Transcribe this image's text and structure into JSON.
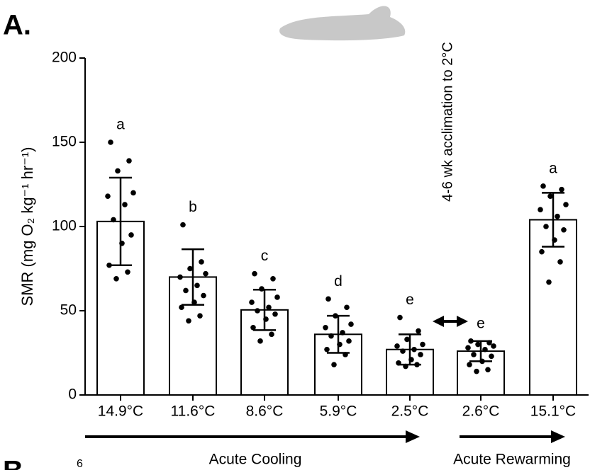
{
  "chart_data": {
    "type": "bar",
    "panel_label": "A.",
    "ylabel": "SMR (mg O₂ kg⁻¹ hr⁻¹)",
    "categories": [
      "14.9°C",
      "11.6°C",
      "8.6°C",
      "5.9°C",
      "2.5°C",
      "2.6°C",
      "15.1°C"
    ],
    "values": [
      103,
      70,
      50.5,
      36,
      27,
      26,
      104
    ],
    "errors": [
      26,
      16.5,
      12,
      11,
      9,
      6,
      16
    ],
    "letters": [
      "a",
      "b",
      "c",
      "d",
      "e",
      "e",
      "a"
    ],
    "points": [
      [
        150,
        139,
        133,
        120,
        118,
        113,
        104,
        95,
        90,
        77,
        73,
        69
      ],
      [
        101,
        79,
        75,
        72,
        70,
        65,
        62,
        59,
        55,
        52,
        47,
        44
      ],
      [
        72,
        69,
        63,
        58,
        55,
        52,
        50,
        48,
        45,
        40,
        36,
        32
      ],
      [
        57,
        52,
        47,
        42,
        40,
        37,
        35,
        32,
        30,
        27,
        24,
        18
      ],
      [
        46,
        38,
        33,
        30,
        29,
        27,
        26,
        24,
        21,
        19,
        18,
        17
      ],
      [
        32,
        31,
        30,
        29,
        28,
        27,
        24,
        23,
        20,
        18,
        15,
        14
      ],
      [
        124,
        122,
        118,
        113,
        110,
        106,
        100,
        98,
        92,
        85,
        79,
        67
      ]
    ],
    "color": "#ffffff",
    "ylim": [
      0,
      200
    ],
    "yticks": [
      0,
      50,
      100,
      150,
      200
    ],
    "annotation": "4-6 wk acclimation to 2°C",
    "phases": [
      "Acute Cooling",
      "Acute Rewarming"
    ],
    "next_panel_label": "B",
    "next_panel_tick": "6"
  }
}
